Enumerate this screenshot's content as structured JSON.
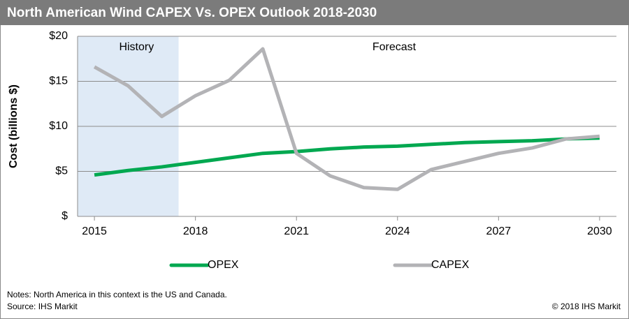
{
  "chart_data": {
    "type": "line",
    "title": "North American Wind CAPEX Vs. OPEX Outlook 2018-2030",
    "y_label": "Cost (billions $)",
    "x": [
      2015,
      2016,
      2017,
      2018,
      2019,
      2020,
      2021,
      2022,
      2023,
      2024,
      2025,
      2026,
      2027,
      2028,
      2029,
      2030
    ],
    "series": [
      {
        "name": "OPEX",
        "color": "#00a850",
        "values": [
          4.6,
          5.1,
          5.5,
          6.0,
          6.5,
          7.0,
          7.2,
          7.5,
          7.7,
          7.8,
          8.0,
          8.2,
          8.3,
          8.4,
          8.6,
          8.7
        ]
      },
      {
        "name": "CAPEX",
        "color": "#b3b3b6",
        "values": [
          16.6,
          14.5,
          11.1,
          13.4,
          15.1,
          18.6,
          7.0,
          4.5,
          3.2,
          3.0,
          5.2,
          6.1,
          7.0,
          7.6,
          8.6,
          8.9
        ]
      }
    ],
    "xlim": [
      2014.5,
      2030.5
    ],
    "xticks": [
      2015,
      2018,
      2021,
      2024,
      2027,
      2030
    ],
    "ylim": [
      0,
      20
    ],
    "yticks": [
      {
        "value": 0,
        "label": "$"
      },
      {
        "value": 5,
        "label": "$5"
      },
      {
        "value": 10,
        "label": "$10"
      },
      {
        "value": 15,
        "label": "$15"
      },
      {
        "value": 20,
        "label": "$20"
      }
    ],
    "grid": true,
    "history_span": [
      2014.5,
      2017.5
    ],
    "annotations": [
      {
        "text": "History",
        "x": 2016.25
      },
      {
        "text": "Forecast",
        "x": 2023.9
      }
    ],
    "notes": "Notes: North America in this context is the US and Canada.",
    "source": "Source: IHS Markit",
    "copyright": "© 2018 IHS Markit"
  }
}
